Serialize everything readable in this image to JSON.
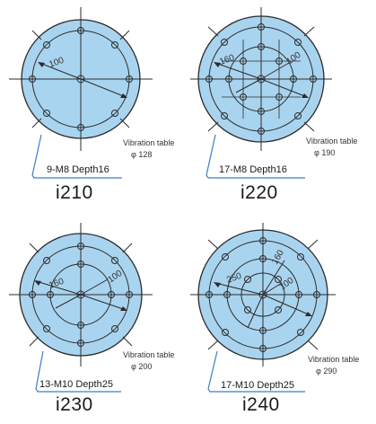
{
  "tables": [
    {
      "model": "i210",
      "hole_spec": "9-M8 Depth16",
      "table_label": "Vibration table",
      "table_diameter": "φ 128",
      "dims": [
        "100"
      ],
      "center_hole": true,
      "ring_count": 1,
      "grid_count": 4
    },
    {
      "model": "i220",
      "hole_spec": "17-M8 Depth16",
      "table_label": "Vibration table",
      "table_diameter": "φ 190",
      "dims": [
        "160",
        "100"
      ],
      "center_hole": true,
      "ring_count": 2,
      "grid_count": 12
    },
    {
      "model": "i230",
      "hole_spec": "13-M10 Depth25",
      "table_label": "Vibration table",
      "table_diameter": "φ 200",
      "dims": [
        "160",
        "100"
      ],
      "center_hole": true,
      "ring_count": 2,
      "grid_count": 4
    },
    {
      "model": "i240",
      "hole_spec": "17-M10 Depth25",
      "table_label": "Vibration table",
      "table_diameter": "φ 290",
      "dims": [
        "250",
        "160",
        "100"
      ],
      "center_hole": true,
      "ring_count": 3,
      "grid_count": 4
    }
  ],
  "colors": {
    "table_fill": "#a9d4ef",
    "outline": "#2b2b2b",
    "leader": "#3a7ec6",
    "text": "#333333"
  }
}
